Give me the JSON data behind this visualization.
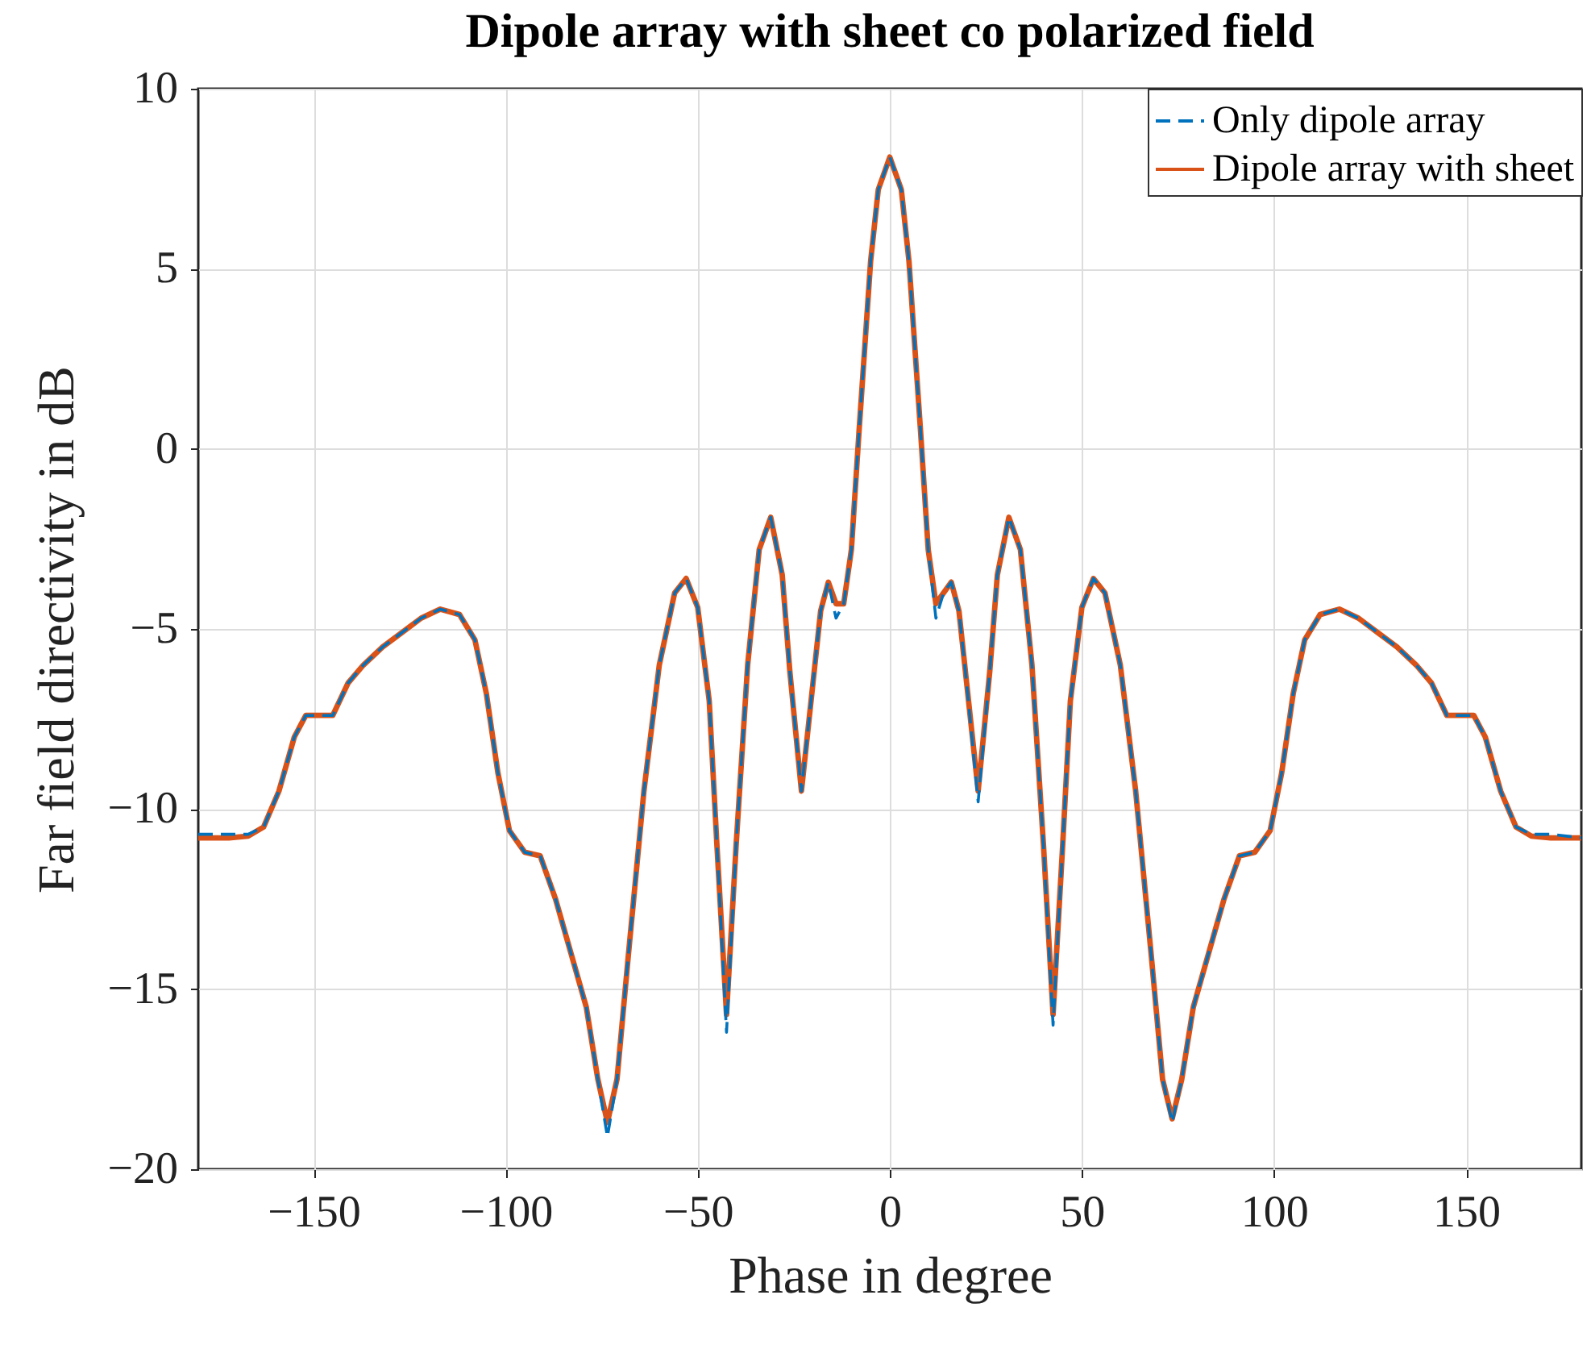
{
  "chart_data": {
    "type": "line",
    "title": "Dipole array with sheet co polarized field",
    "xlabel": "Phase in degree",
    "ylabel": "Far field directivity in dB",
    "x": [
      -180,
      -172,
      -167,
      -163,
      -159,
      -155,
      -152,
      -145,
      -141,
      -137,
      -132,
      -127,
      -122,
      -117,
      -112,
      -108,
      -105,
      -102,
      -99,
      -95,
      -91,
      -87,
      -83,
      -79,
      -76,
      -73.5,
      -71,
      -68,
      -64,
      -60,
      -56,
      -53,
      -50,
      -47,
      -45,
      -42.5,
      -40,
      -37,
      -34,
      -31,
      -28,
      -26,
      -23,
      -20,
      -18,
      -16,
      -14,
      -12,
      -10,
      -8,
      -5,
      -3,
      0,
      3,
      5,
      8,
      10,
      12,
      14,
      16,
      18,
      20,
      23,
      26,
      28,
      31,
      34,
      37,
      40,
      42.5,
      45,
      47,
      50,
      53,
      56,
      60,
      64,
      68,
      71,
      73.5,
      76,
      79,
      83,
      87,
      91,
      95,
      99,
      102,
      105,
      108,
      112,
      117,
      122,
      127,
      132,
      137,
      141,
      145,
      152,
      155,
      159,
      163,
      167,
      172,
      180
    ],
    "series": [
      {
        "name": "Only dipole array",
        "color": "#0072bd",
        "line_style": "dashed",
        "values": [
          -10.7,
          -10.7,
          -10.7,
          -10.5,
          -9.5,
          -8,
          -7.4,
          -7.4,
          -6.5,
          -6,
          -5.5,
          -5.1,
          -4.7,
          -4.45,
          -4.6,
          -5.3,
          -6.8,
          -9,
          -10.6,
          -11.2,
          -11.3,
          -12.5,
          -14,
          -15.5,
          -17.5,
          -19.1,
          -17.5,
          -14,
          -9.5,
          -6,
          -4,
          -3.6,
          -4.4,
          -7,
          -11,
          -16.2,
          -11,
          -6,
          -2.8,
          -1.9,
          -3.5,
          -6.2,
          -9.5,
          -6.5,
          -4.5,
          -3.7,
          -4.7,
          -4.3,
          -2.8,
          0.5,
          5.2,
          7.2,
          8.1,
          7.2,
          5.2,
          0.5,
          -2.8,
          -4.7,
          -4,
          -3.7,
          -4.5,
          -6.5,
          -9.8,
          -6.2,
          -3.5,
          -1.9,
          -2.8,
          -6,
          -11,
          -16,
          -11,
          -7,
          -4.4,
          -3.6,
          -4,
          -6,
          -9.5,
          -14,
          -17.5,
          -18.7,
          -17.5,
          -15.5,
          -14,
          -12.5,
          -11.3,
          -11.2,
          -10.6,
          -9,
          -6.8,
          -5.3,
          -4.6,
          -4.45,
          -4.7,
          -5.1,
          -5.5,
          -6,
          -6.5,
          -7.4,
          -7.4,
          -8,
          -9.5,
          -10.5,
          -10.7,
          -10.7,
          -10.8
        ]
      },
      {
        "name": "Dipole array with sheet",
        "color": "#d95319",
        "line_style": "solid",
        "values": [
          -10.8,
          -10.8,
          -10.75,
          -10.5,
          -9.5,
          -8,
          -7.4,
          -7.4,
          -6.5,
          -6,
          -5.5,
          -5.1,
          -4.7,
          -4.45,
          -4.6,
          -5.3,
          -6.8,
          -9,
          -10.6,
          -11.2,
          -11.3,
          -12.5,
          -14,
          -15.5,
          -17.5,
          -18.7,
          -17.5,
          -14,
          -9.5,
          -6,
          -4,
          -3.6,
          -4.4,
          -7,
          -11,
          -15.7,
          -11,
          -6,
          -2.8,
          -1.9,
          -3.5,
          -6.2,
          -9.5,
          -6.5,
          -4.5,
          -3.7,
          -4.3,
          -4.3,
          -2.8,
          0.5,
          5.2,
          7.2,
          8.1,
          7.2,
          5.2,
          0.5,
          -2.8,
          -4.3,
          -4,
          -3.7,
          -4.5,
          -6.5,
          -9.5,
          -6.2,
          -3.5,
          -1.9,
          -2.8,
          -6,
          -11,
          -15.7,
          -11,
          -7,
          -4.4,
          -3.6,
          -4,
          -6,
          -9.5,
          -14,
          -17.5,
          -18.6,
          -17.5,
          -15.5,
          -14,
          -12.5,
          -11.3,
          -11.2,
          -10.6,
          -9,
          -6.8,
          -5.3,
          -4.6,
          -4.45,
          -4.7,
          -5.1,
          -5.5,
          -6,
          -6.5,
          -7.4,
          -7.4,
          -8,
          -9.5,
          -10.5,
          -10.75,
          -10.8,
          -10.8
        ]
      }
    ],
    "xlim": [
      -180,
      180
    ],
    "xticks": [
      -150,
      -100,
      -50,
      0,
      50,
      100,
      150
    ],
    "ylim": [
      -20,
      10
    ],
    "yticks": [
      -20,
      -15,
      -10,
      -5,
      0,
      5,
      10
    ],
    "grid": true,
    "legend": "top right"
  }
}
